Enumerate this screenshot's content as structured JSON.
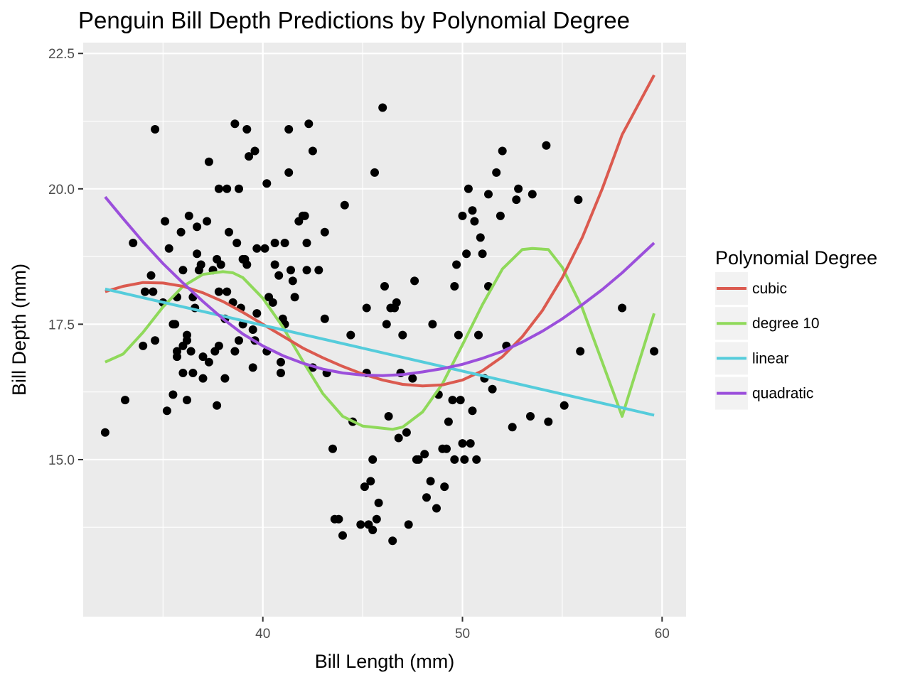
{
  "chart_data": {
    "type": "scatter",
    "title": "Penguin Bill Depth Predictions by Polynomial Degree",
    "xlabel": "Bill Length (mm)",
    "ylabel": "Bill Depth (mm)",
    "xlim": [
      31.0,
      61.2
    ],
    "ylim": [
      12.1,
      22.7
    ],
    "x_ticks": [
      40,
      50,
      60
    ],
    "y_ticks": [
      15.0,
      17.5,
      20.0,
      22.5
    ],
    "x_tick_labels": [
      "40",
      "50",
      "60"
    ],
    "y_tick_labels": [
      "15.0",
      "17.5",
      "20.0",
      "22.5"
    ],
    "grid": true,
    "legend": {
      "title": "Polynomial Degree",
      "position": "right",
      "entries": [
        "cubic",
        "degree 10",
        "linear",
        "quadratic"
      ]
    },
    "colors": {
      "panel": "#ebebeb",
      "grid": "#ffffff",
      "points": "#000000",
      "cubic": "#db5a4f",
      "degree 10": "#8fd95a",
      "linear": "#55ccdb",
      "quadratic": "#9b4fdb"
    },
    "points": [
      [
        32.1,
        15.5
      ],
      [
        33.1,
        16.1
      ],
      [
        33.5,
        19.0
      ],
      [
        34.0,
        17.1
      ],
      [
        34.1,
        18.1
      ],
      [
        34.4,
        18.4
      ],
      [
        34.5,
        18.1
      ],
      [
        34.6,
        17.2
      ],
      [
        34.6,
        21.1
      ],
      [
        35.0,
        17.9
      ],
      [
        35.1,
        19.4
      ],
      [
        35.2,
        15.9
      ],
      [
        35.3,
        18.9
      ],
      [
        35.5,
        16.2
      ],
      [
        35.5,
        17.5
      ],
      [
        35.6,
        17.5
      ],
      [
        35.7,
        16.9
      ],
      [
        35.7,
        17.0
      ],
      [
        35.7,
        18.0
      ],
      [
        35.9,
        19.2
      ],
      [
        36.0,
        16.6
      ],
      [
        36.0,
        17.1
      ],
      [
        36.0,
        18.5
      ],
      [
        36.2,
        16.1
      ],
      [
        36.2,
        17.3
      ],
      [
        36.2,
        17.2
      ],
      [
        36.3,
        19.5
      ],
      [
        36.4,
        17.0
      ],
      [
        36.5,
        16.6
      ],
      [
        36.5,
        18.0
      ],
      [
        36.6,
        17.8
      ],
      [
        36.7,
        18.8
      ],
      [
        36.7,
        19.3
      ],
      [
        36.8,
        18.5
      ],
      [
        36.9,
        18.6
      ],
      [
        37.0,
        16.5
      ],
      [
        37.0,
        16.9
      ],
      [
        37.2,
        19.4
      ],
      [
        37.3,
        16.8
      ],
      [
        37.3,
        20.5
      ],
      [
        37.5,
        18.5
      ],
      [
        37.6,
        17.0
      ],
      [
        37.7,
        16.0
      ],
      [
        37.7,
        18.7
      ],
      [
        37.8,
        17.1
      ],
      [
        37.8,
        18.1
      ],
      [
        37.8,
        20.0
      ],
      [
        37.9,
        18.6
      ],
      [
        38.1,
        16.5
      ],
      [
        38.1,
        17.6
      ],
      [
        38.2,
        18.1
      ],
      [
        38.2,
        20.0
      ],
      [
        38.3,
        19.2
      ],
      [
        38.5,
        17.9
      ],
      [
        38.6,
        17.0
      ],
      [
        38.6,
        21.2
      ],
      [
        38.7,
        19.0
      ],
      [
        38.8,
        17.2
      ],
      [
        38.8,
        20.0
      ],
      [
        38.9,
        17.8
      ],
      [
        39.0,
        17.5
      ],
      [
        39.0,
        18.7
      ],
      [
        39.1,
        18.7
      ],
      [
        39.2,
        18.6
      ],
      [
        39.2,
        21.1
      ],
      [
        39.3,
        20.6
      ],
      [
        39.5,
        16.7
      ],
      [
        39.5,
        17.4
      ],
      [
        39.6,
        17.2
      ],
      [
        39.6,
        20.7
      ],
      [
        39.7,
        17.7
      ],
      [
        39.7,
        18.9
      ],
      [
        40.1,
        18.9
      ],
      [
        40.2,
        17.0
      ],
      [
        40.2,
        20.1
      ],
      [
        40.3,
        18.0
      ],
      [
        40.5,
        17.9
      ],
      [
        40.6,
        18.6
      ],
      [
        40.6,
        19.0
      ],
      [
        40.8,
        18.4
      ],
      [
        40.9,
        16.6
      ],
      [
        40.9,
        16.8
      ],
      [
        41.0,
        17.6
      ],
      [
        41.1,
        17.5
      ],
      [
        41.1,
        19.0
      ],
      [
        41.3,
        20.3
      ],
      [
        41.3,
        21.1
      ],
      [
        41.4,
        18.5
      ],
      [
        41.5,
        18.3
      ],
      [
        41.6,
        18.0
      ],
      [
        41.8,
        19.4
      ],
      [
        42.0,
        19.5
      ],
      [
        42.1,
        19.5
      ],
      [
        42.2,
        18.5
      ],
      [
        42.2,
        19.0
      ],
      [
        42.3,
        21.2
      ],
      [
        42.5,
        16.7
      ],
      [
        42.5,
        20.7
      ],
      [
        42.8,
        18.5
      ],
      [
        43.1,
        17.6
      ],
      [
        43.1,
        19.2
      ],
      [
        43.2,
        16.6
      ],
      [
        43.5,
        15.2
      ],
      [
        43.6,
        13.9
      ],
      [
        43.8,
        13.9
      ],
      [
        44.0,
        13.6
      ],
      [
        44.1,
        19.7
      ],
      [
        44.4,
        17.3
      ],
      [
        44.5,
        15.7
      ],
      [
        44.9,
        13.8
      ],
      [
        45.1,
        14.5
      ],
      [
        45.2,
        16.6
      ],
      [
        45.2,
        17.8
      ],
      [
        45.3,
        13.8
      ],
      [
        45.4,
        14.6
      ],
      [
        45.5,
        15.0
      ],
      [
        45.5,
        13.7
      ],
      [
        45.6,
        20.3
      ],
      [
        45.7,
        13.9
      ],
      [
        45.8,
        14.2
      ],
      [
        46.0,
        21.5
      ],
      [
        46.1,
        18.2
      ],
      [
        46.2,
        17.5
      ],
      [
        46.3,
        15.8
      ],
      [
        46.4,
        17.8
      ],
      [
        46.5,
        13.5
      ],
      [
        46.6,
        17.8
      ],
      [
        46.7,
        17.9
      ],
      [
        46.8,
        15.4
      ],
      [
        46.9,
        16.6
      ],
      [
        47.0,
        17.3
      ],
      [
        47.2,
        15.5
      ],
      [
        47.3,
        13.8
      ],
      [
        47.5,
        16.5
      ],
      [
        47.6,
        18.3
      ],
      [
        47.7,
        15.0
      ],
      [
        47.8,
        15.0
      ],
      [
        48.1,
        15.1
      ],
      [
        48.2,
        14.3
      ],
      [
        48.4,
        14.6
      ],
      [
        48.5,
        17.5
      ],
      [
        48.7,
        14.1
      ],
      [
        48.8,
        16.2
      ],
      [
        49.0,
        15.2
      ],
      [
        49.1,
        14.5
      ],
      [
        49.2,
        15.2
      ],
      [
        49.3,
        15.7
      ],
      [
        49.5,
        16.1
      ],
      [
        49.6,
        18.2
      ],
      [
        49.6,
        15.0
      ],
      [
        49.7,
        18.6
      ],
      [
        49.8,
        17.3
      ],
      [
        49.9,
        16.1
      ],
      [
        50.0,
        15.3
      ],
      [
        50.0,
        19.5
      ],
      [
        50.1,
        15.0
      ],
      [
        50.2,
        18.8
      ],
      [
        50.3,
        20.0
      ],
      [
        50.4,
        15.3
      ],
      [
        50.5,
        15.9
      ],
      [
        50.5,
        19.6
      ],
      [
        50.6,
        19.4
      ],
      [
        50.7,
        15.0
      ],
      [
        50.8,
        17.3
      ],
      [
        50.9,
        19.1
      ],
      [
        51.0,
        18.8
      ],
      [
        51.1,
        16.5
      ],
      [
        51.3,
        18.2
      ],
      [
        51.3,
        19.9
      ],
      [
        51.5,
        16.3
      ],
      [
        51.7,
        20.3
      ],
      [
        51.9,
        19.5
      ],
      [
        52.0,
        20.7
      ],
      [
        52.2,
        17.1
      ],
      [
        52.5,
        15.6
      ],
      [
        52.7,
        19.8
      ],
      [
        52.8,
        20.0
      ],
      [
        53.4,
        15.8
      ],
      [
        53.5,
        19.9
      ],
      [
        54.2,
        20.8
      ],
      [
        54.3,
        15.7
      ],
      [
        55.1,
        16.0
      ],
      [
        55.8,
        19.8
      ],
      [
        55.9,
        17.0
      ],
      [
        58.0,
        17.8
      ],
      [
        59.6,
        17.0
      ]
    ],
    "series": [
      {
        "name": "cubic",
        "x": [
          32.1,
          33.0,
          34.0,
          35.0,
          36.0,
          37.0,
          38.0,
          39.0,
          40.0,
          41.0,
          42.0,
          43.0,
          44.0,
          45.0,
          46.0,
          47.0,
          48.0,
          49.0,
          50.0,
          51.0,
          52.0,
          53.0,
          54.0,
          55.0,
          56.0,
          57.0,
          58.0,
          59.6
        ],
        "y": [
          18.1,
          18.2,
          18.27,
          18.26,
          18.2,
          18.08,
          17.92,
          17.72,
          17.5,
          17.28,
          17.06,
          16.88,
          16.72,
          16.58,
          16.47,
          16.39,
          16.36,
          16.38,
          16.47,
          16.64,
          16.9,
          17.27,
          17.75,
          18.36,
          19.1,
          20.0,
          21.0,
          22.1
        ]
      },
      {
        "name": "degree 10",
        "x": [
          32.1,
          33.0,
          34.0,
          35.0,
          36.0,
          37.0,
          38.0,
          38.5,
          39.0,
          40.0,
          41.0,
          42.0,
          43.0,
          44.0,
          45.0,
          46.0,
          46.5,
          47.0,
          48.0,
          49.0,
          50.0,
          51.0,
          52.0,
          53.0,
          53.5,
          54.3,
          55.0,
          56.0,
          57.0,
          58.0,
          59.6
        ],
        "y": [
          16.8,
          16.95,
          17.35,
          17.82,
          18.2,
          18.42,
          18.47,
          18.45,
          18.36,
          17.98,
          17.45,
          16.82,
          16.22,
          15.8,
          15.62,
          15.58,
          15.56,
          15.6,
          15.88,
          16.4,
          17.12,
          17.86,
          18.52,
          18.88,
          18.9,
          18.88,
          18.55,
          17.8,
          16.8,
          15.8,
          17.7
        ]
      },
      {
        "name": "linear",
        "x": [
          32.1,
          59.6
        ],
        "y": [
          18.15,
          15.82
        ]
      },
      {
        "name": "quadratic",
        "x": [
          32.1,
          33.0,
          34.0,
          35.0,
          36.0,
          37.0,
          38.0,
          39.0,
          40.0,
          41.0,
          42.0,
          43.0,
          44.0,
          45.0,
          46.0,
          47.0,
          48.0,
          49.0,
          50.0,
          51.0,
          52.0,
          53.0,
          54.0,
          55.0,
          56.0,
          57.0,
          58.0,
          59.6
        ],
        "y": [
          19.85,
          19.45,
          19.02,
          18.62,
          18.26,
          17.92,
          17.6,
          17.32,
          17.1,
          16.92,
          16.78,
          16.67,
          16.6,
          16.56,
          16.55,
          16.57,
          16.62,
          16.68,
          16.76,
          16.87,
          17.0,
          17.17,
          17.37,
          17.6,
          17.86,
          18.14,
          18.45,
          19.0
        ]
      }
    ]
  }
}
